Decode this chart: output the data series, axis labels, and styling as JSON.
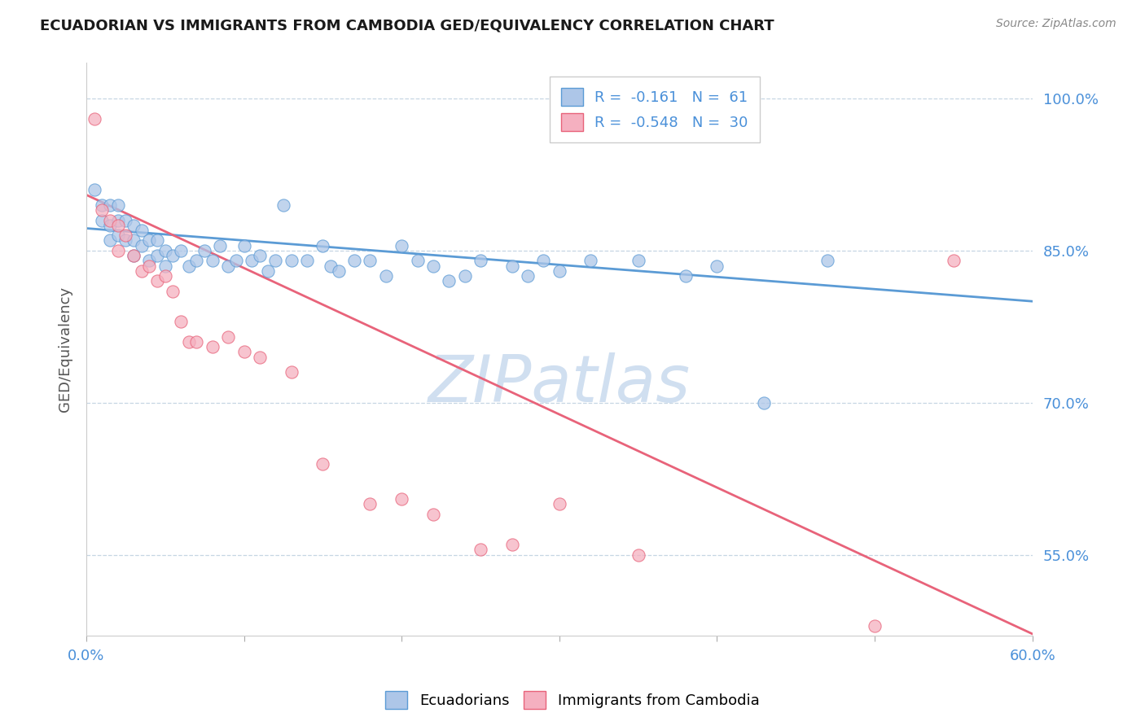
{
  "title": "ECUADORIAN VS IMMIGRANTS FROM CAMBODIA GED/EQUIVALENCY CORRELATION CHART",
  "source": "Source: ZipAtlas.com",
  "ylabel": "GED/Equivalency",
  "xlim": [
    0.0,
    0.6
  ],
  "ylim": [
    0.47,
    1.035
  ],
  "yticks": [
    0.55,
    0.7,
    0.85,
    1.0
  ],
  "ytick_labels": [
    "55.0%",
    "70.0%",
    "85.0%",
    "100.0%"
  ],
  "xticks": [
    0.0,
    0.1,
    0.2,
    0.3,
    0.4,
    0.5,
    0.6
  ],
  "xtick_labels": [
    "0.0%",
    "",
    "",
    "",
    "",
    "",
    "60.0%"
  ],
  "blue_color": "#adc6e8",
  "pink_color": "#f5b0c0",
  "blue_line_color": "#5b9bd5",
  "pink_line_color": "#e8637a",
  "watermark": "ZIPatlas",
  "watermark_color": "#d0dff0",
  "blue_points_x": [
    0.005,
    0.01,
    0.01,
    0.015,
    0.015,
    0.015,
    0.02,
    0.02,
    0.02,
    0.025,
    0.025,
    0.03,
    0.03,
    0.03,
    0.035,
    0.035,
    0.04,
    0.04,
    0.045,
    0.045,
    0.05,
    0.05,
    0.055,
    0.06,
    0.065,
    0.07,
    0.075,
    0.08,
    0.085,
    0.09,
    0.095,
    0.1,
    0.105,
    0.11,
    0.115,
    0.12,
    0.125,
    0.13,
    0.14,
    0.15,
    0.155,
    0.16,
    0.17,
    0.18,
    0.19,
    0.2,
    0.21,
    0.22,
    0.23,
    0.24,
    0.25,
    0.27,
    0.28,
    0.29,
    0.3,
    0.32,
    0.35,
    0.38,
    0.4,
    0.43,
    0.47
  ],
  "blue_points_y": [
    0.91,
    0.895,
    0.88,
    0.895,
    0.875,
    0.86,
    0.895,
    0.88,
    0.865,
    0.88,
    0.86,
    0.875,
    0.86,
    0.845,
    0.87,
    0.855,
    0.86,
    0.84,
    0.86,
    0.845,
    0.85,
    0.835,
    0.845,
    0.85,
    0.835,
    0.84,
    0.85,
    0.84,
    0.855,
    0.835,
    0.84,
    0.855,
    0.84,
    0.845,
    0.83,
    0.84,
    0.895,
    0.84,
    0.84,
    0.855,
    0.835,
    0.83,
    0.84,
    0.84,
    0.825,
    0.855,
    0.84,
    0.835,
    0.82,
    0.825,
    0.84,
    0.835,
    0.825,
    0.84,
    0.83,
    0.84,
    0.84,
    0.825,
    0.835,
    0.7,
    0.84
  ],
  "pink_points_x": [
    0.005,
    0.01,
    0.015,
    0.02,
    0.02,
    0.025,
    0.03,
    0.035,
    0.04,
    0.045,
    0.05,
    0.055,
    0.06,
    0.065,
    0.07,
    0.08,
    0.09,
    0.1,
    0.11,
    0.13,
    0.15,
    0.18,
    0.2,
    0.22,
    0.25,
    0.27,
    0.3,
    0.35,
    0.5,
    0.55
  ],
  "pink_points_y": [
    0.98,
    0.89,
    0.88,
    0.875,
    0.85,
    0.865,
    0.845,
    0.83,
    0.835,
    0.82,
    0.825,
    0.81,
    0.78,
    0.76,
    0.76,
    0.755,
    0.765,
    0.75,
    0.745,
    0.73,
    0.64,
    0.6,
    0.605,
    0.59,
    0.555,
    0.56,
    0.6,
    0.55,
    0.48,
    0.84
  ],
  "blue_trend_x": [
    0.0,
    0.6
  ],
  "blue_trend_y": [
    0.872,
    0.8
  ],
  "pink_trend_x": [
    0.0,
    0.6
  ],
  "pink_trend_y": [
    0.905,
    0.472
  ]
}
